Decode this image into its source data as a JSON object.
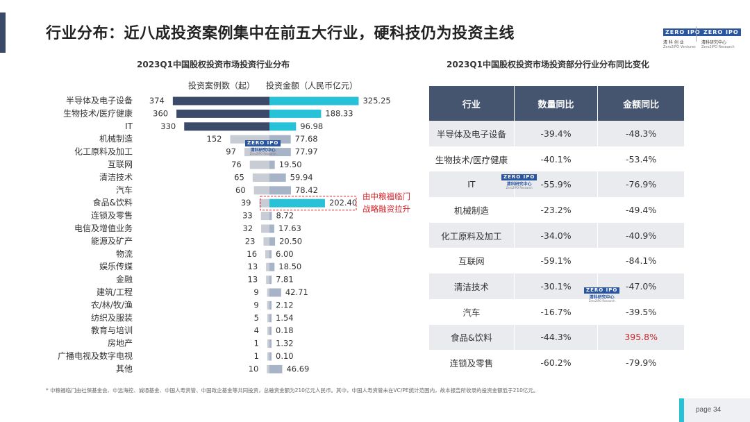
{
  "slide": {
    "title": "行业分布：近八成投资案例集中在前五大行业，硬科技仍为投资主线",
    "page_label": "page  34",
    "footnote": "* 中粮福临门由社保基金会、中远海控、诚通基金、中国人寿资管、中国政企基金等共同投资，总融资金额为210亿元人民币。其中，中国人寿资管未在VC/PE统计范围内，故本报告所收录的投资金额低于210亿元。"
  },
  "logos": {
    "zero2ipo": "ZERO IPO",
    "zero2ipo_sub": "清 科 创 业",
    "zero2ipo_sub2": "Zero2IPO Ventures",
    "research": "ZERO IPO",
    "research_sub": "清科研究中心",
    "research_sub2": "Zero2IPO Research"
  },
  "watermark": {
    "box": "ZERO IPO",
    "sub": "清科研究中心",
    "sub2": "Zero2IPO Research"
  },
  "left_chart_title": "2023Q1中国股权投资市场投资行业分布",
  "right_chart_title": "2023Q1中国股权投资市场投资部分行业分布同比变化",
  "chart_data": [
    {
      "type": "bar",
      "title": "2023Q1中国股权投资市场投资行业分布",
      "series_labels": {
        "left": "投资案例数（起）",
        "right": "投资金额（人民币亿元）"
      },
      "categories": [
        "半导体及电子设备",
        "生物技术/医疗健康",
        "IT",
        "机械制造",
        "化工原料及加工",
        "互联网",
        "清洁技术",
        "汽车",
        "食品&饮料",
        "连锁及零售",
        "电信及增值业务",
        "能源及矿产",
        "物流",
        "娱乐传媒",
        "金融",
        "建筑/工程",
        "农/林/牧/渔",
        "纺织及服装",
        "教育与培训",
        "房地产",
        "广播电视及数字电视",
        "其他"
      ],
      "series": [
        {
          "name": "投资案例数（起）",
          "values": [
            374,
            360,
            330,
            152,
            97,
            76,
            65,
            60,
            39,
            33,
            32,
            23,
            16,
            13,
            13,
            9,
            9,
            5,
            4,
            1,
            1,
            10
          ],
          "labels": [
            "374",
            "360",
            "330",
            "152",
            "97",
            "76",
            "65",
            "60",
            "39",
            "33",
            "32",
            "23",
            "16",
            "13",
            "13",
            "9",
            "9",
            "5",
            "4",
            "1",
            "1",
            "10"
          ]
        },
        {
          "name": "投资金额（人民币亿元）",
          "values": [
            325.25,
            188.33,
            96.98,
            77.68,
            77.97,
            19.5,
            59.94,
            78.42,
            202.4,
            8.72,
            17.63,
            20.5,
            6.0,
            18.5,
            7.81,
            42.71,
            2.12,
            1.54,
            0.18,
            1.32,
            0.1,
            46.69
          ],
          "labels": [
            "325.25",
            "188.33",
            "96.98",
            "77.68",
            "77.97",
            "19.50",
            "59.94",
            "78.42",
            "202.40",
            "8.72",
            "17.63",
            "20.50",
            "6.00",
            "18.50",
            "7.81",
            "42.71",
            "2.12",
            "1.54",
            "0.18",
            "1.32",
            "0.10",
            "46.69"
          ]
        }
      ],
      "highlight_top": 3,
      "highlight_amount_index": 8,
      "annotation": {
        "category": "食品&饮料",
        "lines": [
          "由中粮福临门",
          "战略融资拉升"
        ]
      },
      "colors": {
        "count_dark": "#3b4a68",
        "count_light": "#c8ccd4",
        "amount_dark": "#27c1d8",
        "amount_light": "#a7b3c6",
        "annotation": "#d2232a"
      }
    },
    {
      "type": "table",
      "title": "2023Q1中国股权投资市场投资部分行业分布同比变化",
      "columns": [
        "行业",
        "数量同比",
        "金额同比"
      ],
      "rows": [
        [
          "半导体及电子设备",
          "-39.4%",
          "-48.3%"
        ],
        [
          "生物技术/医疗健康",
          "-40.1%",
          "-53.4%"
        ],
        [
          "IT",
          "-55.9%",
          "-76.9%"
        ],
        [
          "机械制造",
          "-23.2%",
          "-49.4%"
        ],
        [
          "化工原料及加工",
          "-34.0%",
          "-40.9%"
        ],
        [
          "互联网",
          "-59.1%",
          "-84.1%"
        ],
        [
          "清洁技术",
          "-30.1%",
          "-47.0%"
        ],
        [
          "汽车",
          "-16.7%",
          "-39.5%"
        ],
        [
          "食品&饮料",
          "-44.3%",
          "395.8%"
        ],
        [
          "连锁及零售",
          "-60.2%",
          "-79.9%"
        ]
      ],
      "highlight_cell": {
        "row": 8,
        "col": 2,
        "color": "#c0282d"
      },
      "colors": {
        "header": "#46556f",
        "stripe": "#e9ebef"
      }
    }
  ]
}
